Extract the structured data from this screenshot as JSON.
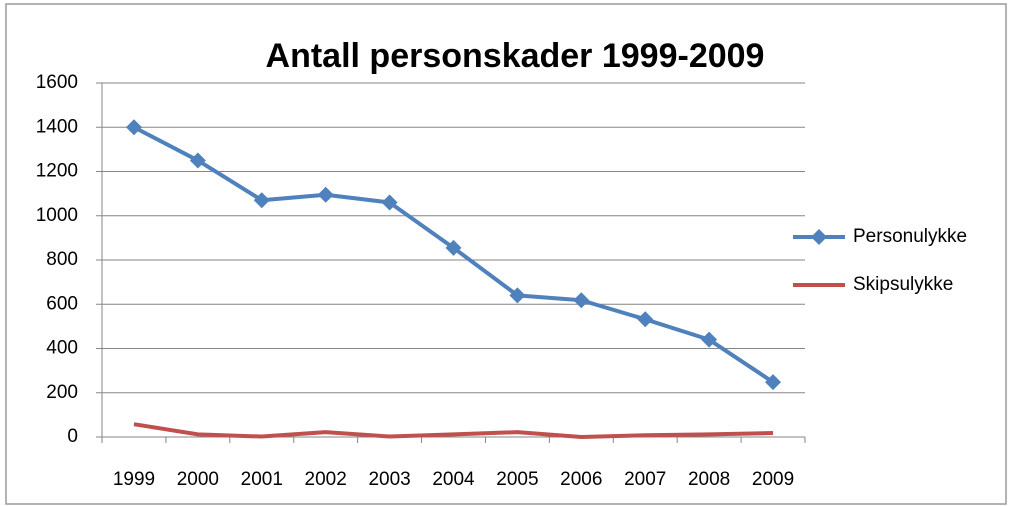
{
  "chart_data": {
    "type": "line",
    "title": "Antall personskader 1999-2009",
    "categories": [
      "1999",
      "2000",
      "2001",
      "2002",
      "2003",
      "2004",
      "2005",
      "2006",
      "2007",
      "2008",
      "2009"
    ],
    "series": [
      {
        "name": "Personulykke",
        "color": "#4f81bd",
        "values": [
          1400,
          1250,
          1070,
          1095,
          1060,
          855,
          640,
          618,
          532,
          440,
          248
        ]
      },
      {
        "name": "Skipsulykke",
        "color": "#c0504d",
        "values": [
          58,
          12,
          2,
          22,
          2,
          12,
          22,
          0,
          8,
          12,
          18
        ]
      }
    ],
    "ylim": [
      0,
      1600
    ],
    "yticks": [
      0,
      200,
      400,
      600,
      800,
      1000,
      1200,
      1400,
      1600
    ],
    "grid": true,
    "legend": "right"
  }
}
